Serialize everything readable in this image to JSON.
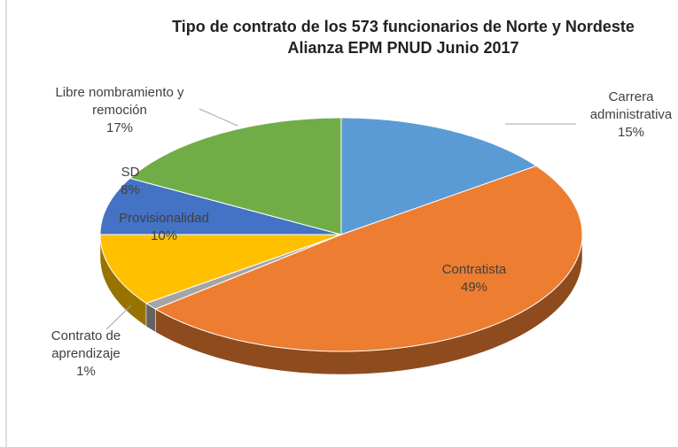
{
  "chart_data": {
    "type": "pie3d",
    "title": "Tipo de contrato de los 573  funcionarios  de Norte y Nordeste",
    "subtitle": "Alianza EPM PNUD Junio 2017",
    "categories": [
      "Carrera administrativa",
      "Contratista",
      "Contrato de aprendizaje",
      "Provisionalidad",
      "SD",
      "Libre nombramiento y remoción"
    ],
    "values": [
      15,
      49,
      1,
      10,
      8,
      17
    ],
    "value_labels": [
      "15%",
      "49%",
      "1%",
      "10%",
      "8%",
      "17%"
    ],
    "colors": [
      "#5b9bd5",
      "#ed7d31",
      "#a5a5a5",
      "#ffc000",
      "#4472c4",
      "#70ad47"
    ]
  }
}
